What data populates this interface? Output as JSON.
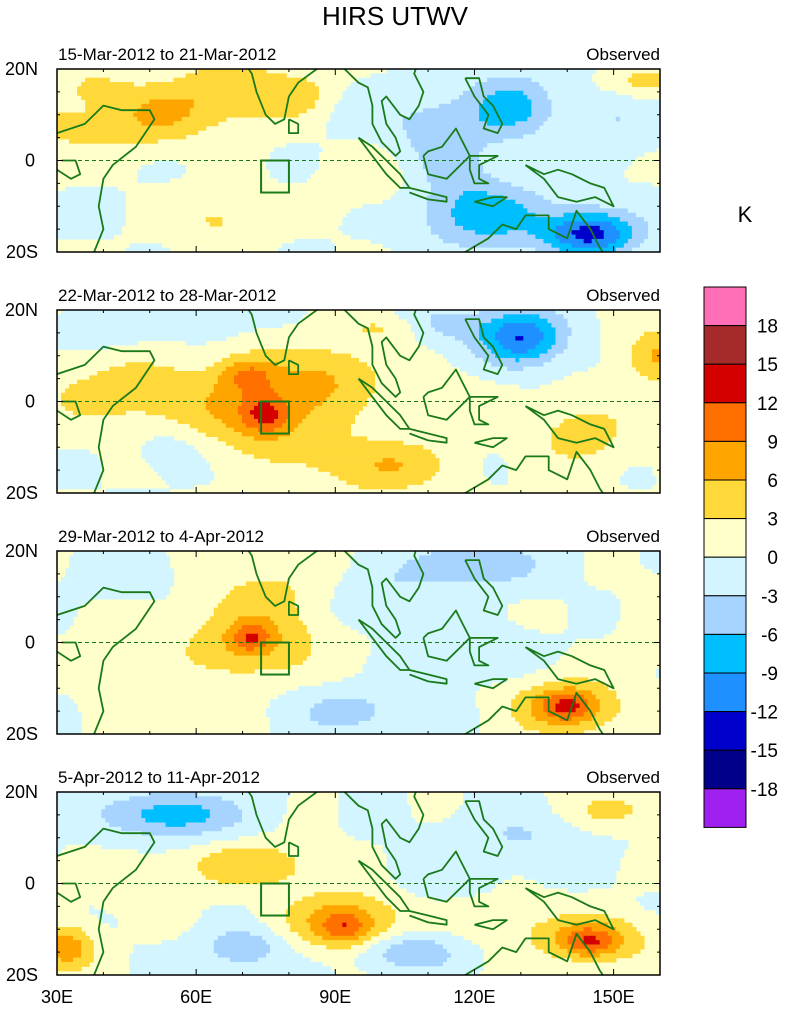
{
  "chart_data": {
    "type": "heatmap",
    "title": "HIRS UTWV",
    "units": "K",
    "colorbar": {
      "levels": [
        "18",
        "15",
        "12",
        "9",
        "6",
        "3",
        "0",
        "-3",
        "-6",
        "-9",
        "-12",
        "-15",
        "-18"
      ],
      "colors": [
        "#ff6fb7",
        "#a52a2a",
        "#d40000",
        "#ff7000",
        "#ffa500",
        "#ffd83a",
        "#ffffcc",
        "#d2f5ff",
        "#a6d4ff",
        "#00bfff",
        "#1e90ff",
        "#0000cd",
        "#00008b",
        "#a020f0"
      ]
    },
    "axes": {
      "x_ticks": [
        "30E",
        "60E",
        "90E",
        "120E",
        "150E"
      ],
      "y_ticks": [
        "20N",
        "0",
        "20S"
      ],
      "xlim_lon": [
        30,
        160
      ],
      "ylim_lat": [
        -20,
        20
      ]
    },
    "panels": [
      {
        "left_title": "15-Mar-2012 to 21-Mar-2012",
        "right_title": "Observed"
      },
      {
        "left_title": "22-Mar-2012 to 28-Mar-2012",
        "right_title": "Observed"
      },
      {
        "left_title": "29-Mar-2012 to 4-Apr-2012",
        "right_title": "Observed"
      },
      {
        "left_title": "5-Apr-2012 to 11-Apr-2012",
        "right_title": "Observed"
      }
    ],
    "anomaly_centers": [
      [
        [
          32,
          7,
          22,
          6,
          3.5
        ],
        [
          38,
          16,
          10,
          5,
          3
        ],
        [
          52,
          10,
          10,
          6,
          4.5
        ],
        [
          67,
          15,
          13,
          7,
          5.5
        ],
        [
          85,
          14,
          10,
          6,
          4
        ],
        [
          92,
          12,
          9,
          6,
          -3
        ],
        [
          100,
          -2,
          11,
          9,
          2
        ],
        [
          65,
          -13,
          10,
          6,
          3.5
        ],
        [
          112,
          6,
          12,
          9,
          -5
        ],
        [
          128,
          12,
          9,
          7,
          -7
        ],
        [
          150,
          10,
          9,
          8,
          -3
        ],
        [
          122,
          -12,
          14,
          7,
          -8
        ],
        [
          145,
          -16,
          10,
          5,
          -13
        ],
        [
          156,
          17,
          9,
          4,
          4.5
        ],
        [
          116,
          -4,
          8,
          5,
          -2
        ]
      ],
      [
        [
          45,
          2,
          20,
          8,
          4.5
        ],
        [
          75,
          -2,
          16,
          10,
          7
        ],
        [
          75,
          -3,
          5,
          4,
          7
        ],
        [
          71,
          6,
          6,
          4,
          5.5
        ],
        [
          90,
          6,
          12,
          7,
          4.5
        ],
        [
          100,
          -14,
          14,
          6,
          6
        ],
        [
          40,
          16,
          10,
          4,
          -3
        ],
        [
          60,
          18,
          9,
          4,
          -3
        ],
        [
          115,
          17,
          9,
          4,
          -4
        ],
        [
          130,
          14,
          9,
          6,
          -12
        ],
        [
          160,
          10,
          8,
          6,
          6.5
        ],
        [
          143,
          -7,
          11,
          7,
          4.5
        ],
        [
          118,
          0,
          10,
          6,
          2
        ],
        [
          55,
          -10,
          8,
          5,
          -2
        ],
        [
          100,
          16,
          8,
          3,
          3
        ]
      ],
      [
        [
          72,
          0,
          14,
          8,
          6.5
        ],
        [
          72,
          1,
          4,
          3,
          6
        ],
        [
          45,
          -3,
          10,
          8,
          2
        ],
        [
          120,
          17,
          14,
          5,
          -6
        ],
        [
          100,
          10,
          10,
          6,
          -3
        ],
        [
          140,
          -14,
          12,
          6,
          8
        ],
        [
          140,
          -14,
          5,
          3,
          6
        ],
        [
          123,
          -3,
          10,
          6,
          -2
        ],
        [
          93,
          -15,
          14,
          5,
          -4
        ],
        [
          75,
          12,
          14,
          7,
          3
        ],
        [
          45,
          15,
          10,
          5,
          -2
        ],
        [
          165,
          5,
          10,
          8,
          3
        ],
        [
          60,
          -16,
          10,
          5,
          2
        ]
      ],
      [
        [
          55,
          15,
          14,
          5,
          -8
        ],
        [
          72,
          4,
          14,
          5,
          5.5
        ],
        [
          92,
          -8,
          12,
          6,
          8
        ],
        [
          92,
          -10,
          5,
          3,
          5
        ],
        [
          145,
          -12,
          12,
          5,
          8
        ],
        [
          145,
          -13,
          5,
          3,
          5
        ],
        [
          130,
          10,
          14,
          6,
          -3
        ],
        [
          150,
          16,
          10,
          4,
          4
        ],
        [
          70,
          -14,
          8,
          4,
          -6
        ],
        [
          106,
          -15,
          10,
          4,
          -6
        ],
        [
          32,
          -14,
          6,
          5,
          8
        ],
        [
          112,
          3,
          10,
          6,
          -2
        ],
        [
          48,
          0,
          10,
          6,
          2
        ],
        [
          125,
          -8,
          10,
          5,
          2
        ]
      ]
    ]
  }
}
